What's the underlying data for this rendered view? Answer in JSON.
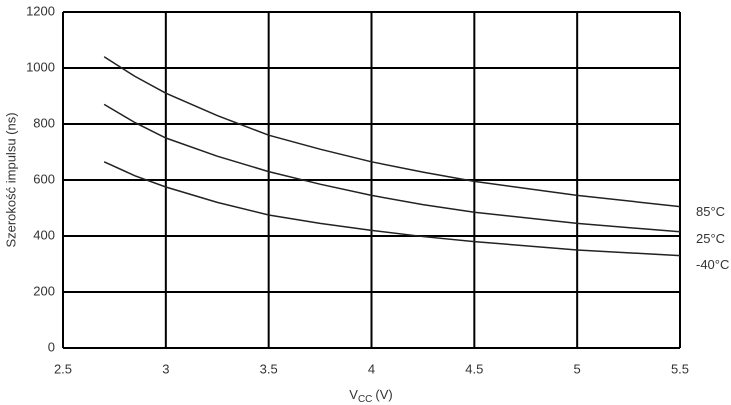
{
  "chart_data": {
    "type": "line",
    "y_label": "Szerokość impulsu (ns)",
    "x_label": {
      "symbol": "V",
      "subscript": "CC",
      "unit": "(V)"
    },
    "x": [
      2.7,
      2.85,
      3,
      3.25,
      3.5,
      3.75,
      4,
      4.25,
      4.5,
      5,
      5.5
    ],
    "series": [
      {
        "name": "85°C",
        "color": "#222222",
        "values": [
          1040,
          970,
          910,
          830,
          760,
          710,
          665,
          628,
          595,
          545,
          505
        ]
      },
      {
        "name": "25°C",
        "color": "#222222",
        "values": [
          870,
          805,
          750,
          685,
          630,
          585,
          545,
          512,
          485,
          445,
          415
        ]
      },
      {
        "name": "-40°C",
        "color": "#222222",
        "values": [
          665,
          615,
          575,
          520,
          475,
          445,
          420,
          398,
          380,
          350,
          330
        ]
      }
    ],
    "xlim": [
      2.5,
      5.5
    ],
    "xticks": [
      2.5,
      3,
      3.5,
      4,
      4.5,
      5,
      5.5
    ],
    "ylim": [
      0,
      1200
    ],
    "yticks": [
      0,
      200,
      400,
      600,
      800,
      1000,
      1200
    ],
    "grid": true
  }
}
